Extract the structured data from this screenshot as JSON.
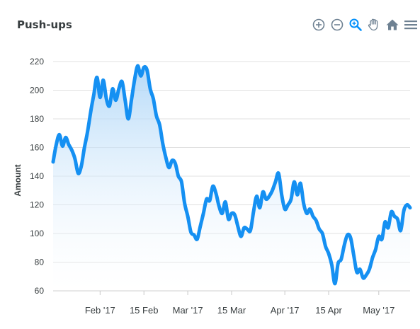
{
  "chart_title": "Push-ups",
  "toolbar": {
    "buttons": [
      {
        "name": "zoom-in-button",
        "icon": "zoom-in-icon"
      },
      {
        "name": "zoom-out-button",
        "icon": "zoom-out-icon"
      },
      {
        "name": "selection-zoom-button",
        "icon": "magnifier-icon",
        "active": true
      },
      {
        "name": "pan-button",
        "icon": "hand-icon"
      },
      {
        "name": "reset-zoom-button",
        "icon": "home-icon"
      },
      {
        "name": "menu-button",
        "icon": "hamburger-icon"
      }
    ]
  },
  "colors": {
    "line": "#1590f2",
    "fill_top": "#a8d3f7",
    "grid": "#e0e0e0",
    "axis_text": "#373d3f",
    "toolbar_icon": "#6e8192",
    "toolbar_active": "#008ffb"
  },
  "chart_data": {
    "type": "area",
    "title": "Push-ups",
    "xlabel": "",
    "ylabel": "Amount",
    "ylim": [
      60,
      220
    ],
    "yticks": [
      60,
      80,
      100,
      120,
      140,
      160,
      180,
      200,
      220
    ],
    "x_ticks": [
      {
        "date": "2017-02-01",
        "label": "Feb '17"
      },
      {
        "date": "2017-02-15",
        "label": "15 Feb"
      },
      {
        "date": "2017-03-01",
        "label": "Mar '17"
      },
      {
        "date": "2017-03-15",
        "label": "15 Mar"
      },
      {
        "date": "2017-04-01",
        "label": "Apr '17"
      },
      {
        "date": "2017-04-15",
        "label": "15 Apr"
      },
      {
        "date": "2017-05-01",
        "label": "May '17"
      }
    ],
    "grid": true,
    "series": [
      {
        "points": [
          [
            "2017-01-17",
            150
          ],
          [
            "2017-01-18",
            162
          ],
          [
            "2017-01-19",
            169
          ],
          [
            "2017-01-20",
            161
          ],
          [
            "2017-01-21",
            167
          ],
          [
            "2017-01-22",
            162
          ],
          [
            "2017-01-23",
            158
          ],
          [
            "2017-01-24",
            152
          ],
          [
            "2017-01-25",
            142
          ],
          [
            "2017-01-26",
            147
          ],
          [
            "2017-01-27",
            160
          ],
          [
            "2017-01-28",
            171
          ],
          [
            "2017-01-29",
            185
          ],
          [
            "2017-01-30",
            197
          ],
          [
            "2017-01-31",
            209
          ],
          [
            "2017-02-01",
            195
          ],
          [
            "2017-02-02",
            207
          ],
          [
            "2017-02-03",
            194
          ],
          [
            "2017-02-04",
            189
          ],
          [
            "2017-02-05",
            201
          ],
          [
            "2017-02-06",
            193
          ],
          [
            "2017-02-07",
            201
          ],
          [
            "2017-02-08",
            206
          ],
          [
            "2017-02-09",
            193
          ],
          [
            "2017-02-10",
            180
          ],
          [
            "2017-02-11",
            193
          ],
          [
            "2017-02-12",
            207
          ],
          [
            "2017-02-13",
            217
          ],
          [
            "2017-02-14",
            210
          ],
          [
            "2017-02-15",
            216
          ],
          [
            "2017-02-16",
            214
          ],
          [
            "2017-02-17",
            201
          ],
          [
            "2017-02-18",
            194
          ],
          [
            "2017-02-19",
            182
          ],
          [
            "2017-02-20",
            176
          ],
          [
            "2017-02-21",
            163
          ],
          [
            "2017-02-22",
            153
          ],
          [
            "2017-02-23",
            146
          ],
          [
            "2017-02-24",
            151
          ],
          [
            "2017-02-25",
            149
          ],
          [
            "2017-02-26",
            140
          ],
          [
            "2017-02-27",
            136
          ],
          [
            "2017-02-28",
            121
          ],
          [
            "2017-03-01",
            112
          ],
          [
            "2017-03-02",
            101
          ],
          [
            "2017-03-03",
            99
          ],
          [
            "2017-03-04",
            96
          ],
          [
            "2017-03-05",
            105
          ],
          [
            "2017-03-06",
            114
          ],
          [
            "2017-03-07",
            124
          ],
          [
            "2017-03-08",
            123
          ],
          [
            "2017-03-09",
            133
          ],
          [
            "2017-03-10",
            128
          ],
          [
            "2017-03-11",
            119
          ],
          [
            "2017-03-12",
            114
          ],
          [
            "2017-03-13",
            122
          ],
          [
            "2017-03-14",
            110
          ],
          [
            "2017-03-15",
            114
          ],
          [
            "2017-03-16",
            113
          ],
          [
            "2017-03-17",
            105
          ],
          [
            "2017-03-18",
            98
          ],
          [
            "2017-03-19",
            104
          ],
          [
            "2017-03-20",
            103
          ],
          [
            "2017-03-21",
            102
          ],
          [
            "2017-03-22",
            115
          ],
          [
            "2017-03-23",
            126
          ],
          [
            "2017-03-24",
            118
          ],
          [
            "2017-03-25",
            129
          ],
          [
            "2017-03-26",
            124
          ],
          [
            "2017-03-27",
            126
          ],
          [
            "2017-03-28",
            130
          ],
          [
            "2017-03-29",
            136
          ],
          [
            "2017-03-30",
            142
          ],
          [
            "2017-03-31",
            127
          ],
          [
            "2017-04-01",
            117
          ],
          [
            "2017-04-02",
            120
          ],
          [
            "2017-04-03",
            124
          ],
          [
            "2017-04-04",
            136
          ],
          [
            "2017-04-05",
            127
          ],
          [
            "2017-04-06",
            135
          ],
          [
            "2017-04-07",
            121
          ],
          [
            "2017-04-08",
            114
          ],
          [
            "2017-04-09",
            117
          ],
          [
            "2017-04-10",
            112
          ],
          [
            "2017-04-11",
            109
          ],
          [
            "2017-04-12",
            103
          ],
          [
            "2017-04-13",
            100
          ],
          [
            "2017-04-14",
            91
          ],
          [
            "2017-04-15",
            86
          ],
          [
            "2017-04-16",
            78
          ],
          [
            "2017-04-17",
            65
          ],
          [
            "2017-04-18",
            79
          ],
          [
            "2017-04-19",
            82
          ],
          [
            "2017-04-20",
            92
          ],
          [
            "2017-04-21",
            99
          ],
          [
            "2017-04-22",
            97
          ],
          [
            "2017-04-23",
            85
          ],
          [
            "2017-04-24",
            73
          ],
          [
            "2017-04-25",
            75
          ],
          [
            "2017-04-26",
            69
          ],
          [
            "2017-04-27",
            71
          ],
          [
            "2017-04-28",
            75
          ],
          [
            "2017-04-29",
            83
          ],
          [
            "2017-04-30",
            89
          ],
          [
            "2017-05-01",
            98
          ],
          [
            "2017-05-02",
            96
          ],
          [
            "2017-05-03",
            108
          ],
          [
            "2017-05-04",
            104
          ],
          [
            "2017-05-05",
            115
          ],
          [
            "2017-05-06",
            112
          ],
          [
            "2017-05-07",
            110
          ],
          [
            "2017-05-08",
            102
          ],
          [
            "2017-05-09",
            116
          ],
          [
            "2017-05-10",
            120
          ],
          [
            "2017-05-11",
            118
          ]
        ]
      }
    ]
  }
}
